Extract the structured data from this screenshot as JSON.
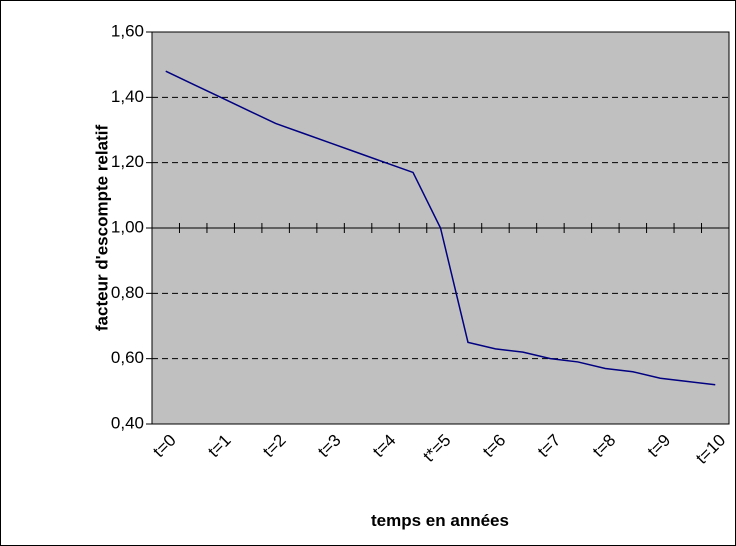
{
  "chart_data": {
    "type": "line",
    "y_axis_title": "facteur d'escompte relatif",
    "x_axis_title": "temps en années",
    "categories": [
      "t=0",
      null,
      "t=1",
      null,
      "t=2",
      null,
      "t=3",
      null,
      "t=4",
      null,
      "t*=5",
      null,
      "t=6",
      null,
      "t=7",
      null,
      "t=8",
      null,
      "t=9",
      null,
      "t=10"
    ],
    "series": [
      {
        "name": "facteur",
        "color": "#000080",
        "values": [
          1.48,
          1.44,
          1.4,
          1.36,
          1.32,
          1.29,
          1.26,
          1.23,
          1.2,
          1.17,
          1.0,
          0.65,
          0.63,
          0.62,
          0.6,
          0.59,
          0.57,
          0.56,
          0.54,
          0.53,
          0.52
        ]
      }
    ],
    "ylim": [
      0.4,
      1.6
    ],
    "yticks": [
      {
        "value": 0.4,
        "label": "0,40"
      },
      {
        "value": 0.6,
        "label": "0,60"
      },
      {
        "value": 0.8,
        "label": "0,80"
      },
      {
        "value": 1.0,
        "label": "1,00"
      },
      {
        "value": 1.2,
        "label": "1,20"
      },
      {
        "value": 1.4,
        "label": "1,40"
      },
      {
        "value": 1.6,
        "label": "1,60"
      }
    ],
    "x_axis_crosses": 1.0,
    "grid": true,
    "plot_background": "#c0c0c0"
  }
}
